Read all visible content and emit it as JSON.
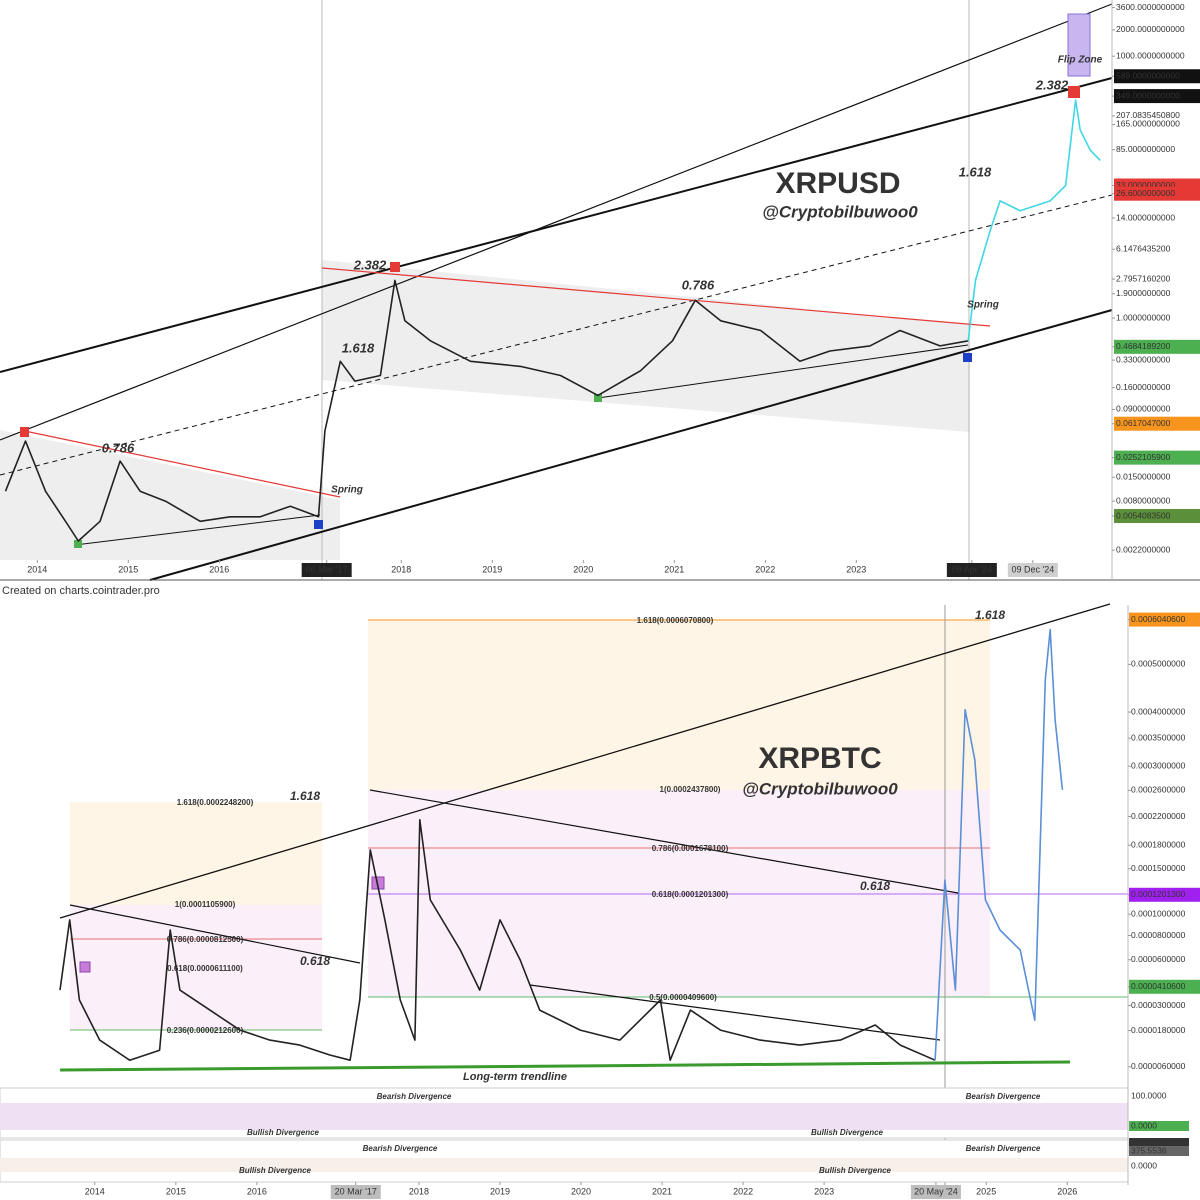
{
  "caption": "Created on charts.cointrader.pro",
  "chart_data": [
    {
      "type": "line",
      "title": "XRPUSD",
      "subtitle": "@Cryptobilbuwoo0",
      "yscale": "log",
      "x": [
        2013.65,
        2013.87,
        2014.09,
        2014.31,
        2014.45,
        2014.69,
        2014.91,
        2015.13,
        2015.41,
        2015.79,
        2016.12,
        2016.45,
        2016.78,
        2017.09,
        2017.16,
        2017.33,
        2017.49,
        2017.77,
        2017.93,
        2018.04,
        2018.32,
        2018.76,
        2019.31,
        2019.75,
        2020.16,
        2020.63,
        2020.98,
        2021.23,
        2021.51,
        2021.95,
        2022.38,
        2022.71,
        2023.15,
        2023.48,
        2023.92,
        2024.23,
        2024.31,
        2024.47,
        2024.58,
        2024.8,
        2025.13,
        2025.3,
        2025.41,
        2025.46,
        2025.57,
        2025.68
      ],
      "series": [
        {
          "color": "#222222",
          "values": [
            0.0104,
            0.039,
            0.0104,
            0.0047,
            0.0028,
            0.0047,
            0.023,
            0.0104,
            0.008,
            0.0047,
            0.0053,
            0.0053,
            0.007,
            0.0053,
            0.051,
            0.32,
            0.19,
            0.22,
            2.7,
            0.93,
            0.55,
            0.32,
            0.28,
            0.22,
            0.13,
            0.25,
            0.55,
            1.6,
            0.93,
            0.72,
            0.32,
            0.42,
            0.48,
            0.72,
            0.48,
            0.55,
            null,
            null,
            null,
            null,
            null,
            null,
            null,
            null,
            null,
            null
          ]
        },
        {
          "color": "#3fd6e6",
          "values": [
            null,
            null,
            null,
            null,
            null,
            null,
            null,
            null,
            null,
            null,
            null,
            null,
            null,
            null,
            null,
            null,
            null,
            null,
            null,
            null,
            null,
            null,
            null,
            null,
            null,
            null,
            null,
            null,
            null,
            null,
            null,
            null,
            null,
            null,
            null,
            0.55,
            2.7,
            10,
            22,
            17,
            22,
            33,
            315,
            143,
            84,
            64
          ]
        }
      ],
      "xlim": [
        2013.59,
        2025.81
      ],
      "xticks": [
        2014,
        2015,
        2016,
        {
          "value": 2017.18,
          "label": "06 Mar '17",
          "color": "#222222"
        },
        2018,
        2019,
        2020,
        2021,
        2022,
        2023,
        {
          "value": 2024.27,
          "label": "08 Apr '24",
          "color": "#222222"
        },
        {
          "value": 2024.94,
          "label": "09 Dec '24",
          "color": "#cfcfcf"
        }
      ],
      "ylim": [
        0.001,
        4400
      ],
      "yticks": [
        {
          "value": 3600,
          "label": "3600.0000000000"
        },
        {
          "value": 2000,
          "label": "2000.0000000000"
        },
        {
          "value": 1000,
          "label": "1000.0000000000"
        },
        {
          "value": 589,
          "label": "589.0000000000",
          "color": "#111111",
          "fill": true
        },
        {
          "value": 349,
          "label": "349.0000000000",
          "color": "#111111",
          "fill": true
        },
        {
          "value": 207.08354508,
          "label": "207.0835450800"
        },
        {
          "value": 165,
          "label": "165.0000000000"
        },
        {
          "value": 85,
          "label": "85.0000000000"
        },
        {
          "value": 33,
          "label": "33.0000000000",
          "color": "#e53935",
          "fill": true
        },
        {
          "value": 26.6,
          "label": "26.6000000000",
          "color": "#e53935",
          "fill": true
        },
        {
          "value": 14,
          "label": "14.0000000000"
        },
        {
          "value": 6.14764352,
          "label": "6.1476435200",
          "color": "#f57c00"
        },
        {
          "value": 2.79571602,
          "label": "2.7957160200",
          "color": "#2e9e44"
        },
        {
          "value": 1.9,
          "label": "1.9000000000"
        },
        {
          "value": 1,
          "label": "1.0000000000"
        },
        {
          "value": 0.46841892,
          "label": "0.4684189200",
          "color": "#4caf50",
          "fill": true
        },
        {
          "value": 0.33,
          "label": "0.3300000000",
          "color": "#e53935"
        },
        {
          "value": 0.16,
          "label": "0.1600000000"
        },
        {
          "value": 0.09,
          "label": "0.0900000000"
        },
        {
          "value": 0.0617047,
          "label": "0.0617047000",
          "color": "#f7941d",
          "fill": true
        },
        {
          "value": 0.02521059,
          "label": "0.0252105900",
          "color": "#4caf50",
          "fill": true
        },
        {
          "value": 0.015,
          "label": "0.0150000000"
        },
        {
          "value": 0.008,
          "label": "0.0080000000"
        },
        {
          "value": 0.00540835,
          "label": "0.0054083500",
          "color": "#5b8f3a",
          "fill": true
        },
        {
          "value": 0.0022,
          "label": "0.0022000000"
        }
      ],
      "annotations": [
        "Flip Zone",
        "2.382",
        "2.382",
        "1.618",
        "1.618",
        "0.786",
        "0.786",
        "Spring",
        "Spring"
      ]
    },
    {
      "type": "line",
      "title": "XRPBTC",
      "subtitle": "@Cryptobilbuwoo0",
      "yscale": "sqrt",
      "x": [
        2013.57,
        2013.69,
        2013.81,
        2014.06,
        2014.43,
        2014.8,
        2014.93,
        2015.05,
        2015.42,
        2015.79,
        2016.16,
        2016.53,
        2016.9,
        2017.15,
        2017.27,
        2017.4,
        2017.58,
        2017.77,
        2017.95,
        2018.01,
        2018.14,
        2018.51,
        2018.75,
        2019.0,
        2019.25,
        2019.49,
        2019.99,
        2020.48,
        2020.98,
        2021.1,
        2021.35,
        2021.72,
        2022.21,
        2022.7,
        2023.2,
        2023.63,
        2023.94,
        2024.37,
        2024.49,
        2024.62,
        2024.74,
        2024.86,
        2024.99,
        2025.17,
        2025.42,
        2025.6,
        2025.73,
        2025.79,
        2025.85,
        2025.94
      ],
      "series": [
        {
          "color": "#222222",
          "values": [
            3.9e-05,
            9.44e-05,
            3.31e-05,
            1.42e-05,
            7.7e-06,
            1.07e-05,
            8.5e-05,
            3.9e-05,
            2.76e-05,
            1.82e-05,
            1.42e-05,
            1.24e-05,
            9.2e-06,
            7.7e-06,
            3.31e-05,
            0.0001738,
            9.44e-05,
            3.31e-05,
            1.42e-05,
            0.0002152,
            0.0001146,
            6.77e-05,
            3.9e-05,
            9.44e-05,
            5.98e-05,
            2.76e-05,
            1.82e-05,
            1.42e-05,
            3.31e-05,
            7.7e-06,
            2.76e-05,
            1.82e-05,
            1.42e-05,
            1.24e-05,
            1.42e-05,
            2.04e-05,
            1.24e-05,
            7.7e-06,
            null,
            null,
            null,
            null,
            null,
            null,
            null,
            null,
            null,
            null,
            null,
            null
          ]
        },
        {
          "color": "#5b8fd6",
          "values": [
            null,
            null,
            null,
            null,
            null,
            null,
            null,
            null,
            null,
            null,
            null,
            null,
            null,
            null,
            null,
            null,
            null,
            null,
            null,
            null,
            null,
            null,
            null,
            null,
            null,
            null,
            null,
            null,
            null,
            null,
            null,
            null,
            null,
            null,
            null,
            null,
            null,
            7.7e-06,
            0.0001368,
            3.9e-05,
            0.0004048,
            0.0003113,
            0.0001146,
            8.5e-05,
            6.77e-05,
            2.26e-05,
            0.0004669,
            0.00058,
            0.0003851,
            0.000261
          ]
        }
      ],
      "xlim": [
        2012.83,
        2026.75
      ],
      "xticks": [
        2014,
        2015,
        2016,
        {
          "value": 2017.22,
          "label": "20 Mar '17",
          "color": "#bdbdbd"
        },
        2018,
        2019,
        2020,
        2021,
        2022,
        2023,
        {
          "value": 2024.38,
          "label": "20 May '24",
          "color": "#bdbdbd"
        },
        2025,
        2026
      ],
      "ylim": [
        2.4e-06,
        0.00064
      ],
      "yticks": [
        {
          "value": 0.00060406,
          "label": "0.0006040600",
          "color": "#f7941d",
          "fill": true
        },
        {
          "value": 0.0005,
          "label": "0.0005000000"
        },
        {
          "value": 0.0004,
          "label": "0.0004000000"
        },
        {
          "value": 0.00035,
          "label": "0.0003500000"
        },
        {
          "value": 0.0003,
          "label": "0.0003000000"
        },
        {
          "value": 0.00026,
          "label": "0.0002600000"
        },
        {
          "value": 0.00022,
          "label": "0.0002200000"
        },
        {
          "value": 0.00018,
          "label": "0.0001800000"
        },
        {
          "value": 0.00015,
          "label": "0.0001500000"
        },
        {
          "value": 0.00012013,
          "label": "0.0001201300",
          "color": "#a020f0",
          "fill": true
        },
        {
          "value": 0.0001,
          "label": "0.0001000000"
        },
        {
          "value": 8e-05,
          "label": "0.0000800000"
        },
        {
          "value": 6e-05,
          "label": "0.0000600000"
        },
        {
          "value": 4.106e-05,
          "label": "0.0000410600",
          "color": "#4caf50",
          "fill": true
        },
        {
          "value": 3e-05,
          "label": "0.0000300000"
        },
        {
          "value": 1.8e-05,
          "label": "0.0000180000"
        },
        {
          "value": 6e-06,
          "label": "0.0000060000"
        }
      ],
      "annotations": [
        "1.618",
        "1.618",
        "0.618",
        "0.618",
        "Long-term trendline",
        "1.618(0.0006070800)",
        "1(0.0002437800)",
        "0.786(0.0001678100)",
        "0.618(0.0001201300)",
        "0.5(0.0000409600)",
        "1.618(0.0002248200)",
        "1(0.0001105900)",
        "0.786(0.0000812500)",
        "0.618(0.0000611100)",
        "0.236(0.0000212600)",
        "Bearish Divergence",
        "Bullish Divergence",
        "Bullish Divergence",
        "Bearish Divergence",
        "Bearish Divergence",
        "Bullish Divergence",
        "Bullish Divergence",
        "Bearish Divergence"
      ],
      "indicator_labels": [
        "100.0000",
        "0.0000",
        "407.4589",
        "375.5536",
        "0.0000"
      ]
    }
  ]
}
